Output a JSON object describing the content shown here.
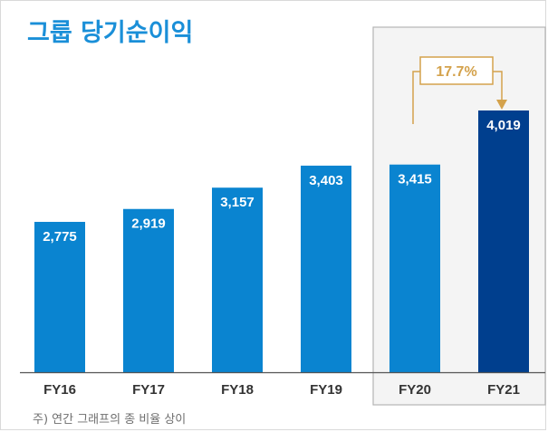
{
  "title": "그룹 당기순이익",
  "footnote": "주) 연간 그래프의 종 비율 상이",
  "colors": {
    "title": "#1a8fd8",
    "bar": "#0a84d0",
    "bar_highlight": "#003f8e",
    "axis": "#555555",
    "highlight_box": "#b5b5b5",
    "growth": "#d4a24c"
  },
  "chart_data": {
    "type": "bar",
    "categories": [
      "FY16",
      "FY17",
      "FY18",
      "FY19",
      "FY20",
      "FY21"
    ],
    "values": [
      2775,
      2919,
      3157,
      3403,
      3415,
      4019
    ],
    "value_labels": [
      "2,775",
      "2,919",
      "3,157",
      "3,403",
      "3,415",
      "4,019"
    ],
    "highlighted_categories": [
      "FY20",
      "FY21"
    ],
    "annotation": {
      "text": "17.7%",
      "from": "FY20",
      "to": "FY21"
    },
    "ylim": [
      0,
      4500
    ],
    "y_axis_visible": false,
    "grid": false
  }
}
